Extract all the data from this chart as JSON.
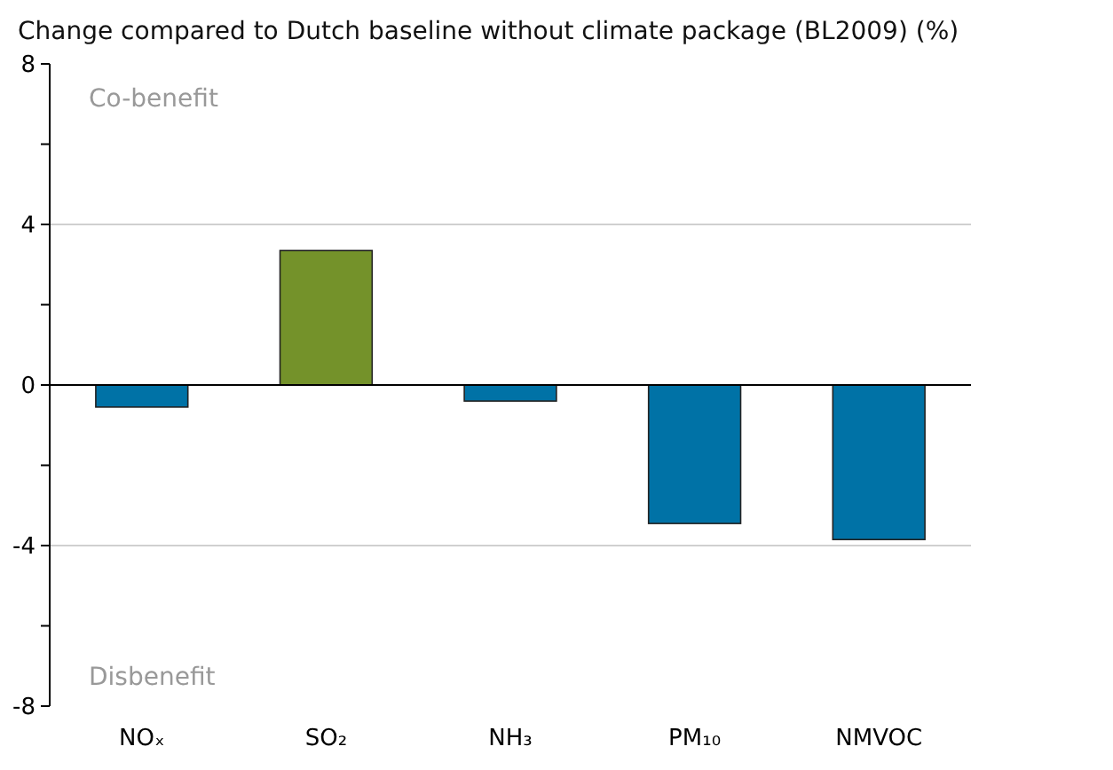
{
  "chart_data": {
    "type": "bar",
    "title": "Change compared to Dutch baseline without climate package (BL2009) (%)",
    "categories": [
      "NOₓ",
      "SO₂",
      "NH₃",
      "PM₁₀",
      "NMVOC"
    ],
    "values": [
      -0.55,
      3.35,
      -0.4,
      -3.45,
      -3.85
    ],
    "colors": [
      "#0072a6",
      "#74922a",
      "#0072a6",
      "#0072a6",
      "#0072a6"
    ],
    "ylim": [
      -8,
      8
    ],
    "yticks": [
      -8,
      {
        "value": -6,
        "label": null
      },
      -4,
      {
        "value": -2,
        "label": null
      },
      0,
      {
        "value": 2,
        "label": null
      },
      4,
      {
        "value": 6,
        "label": null
      },
      8
    ],
    "grid": "y",
    "annotations": [
      "Co-benefit",
      "Disbenefit"
    ]
  }
}
